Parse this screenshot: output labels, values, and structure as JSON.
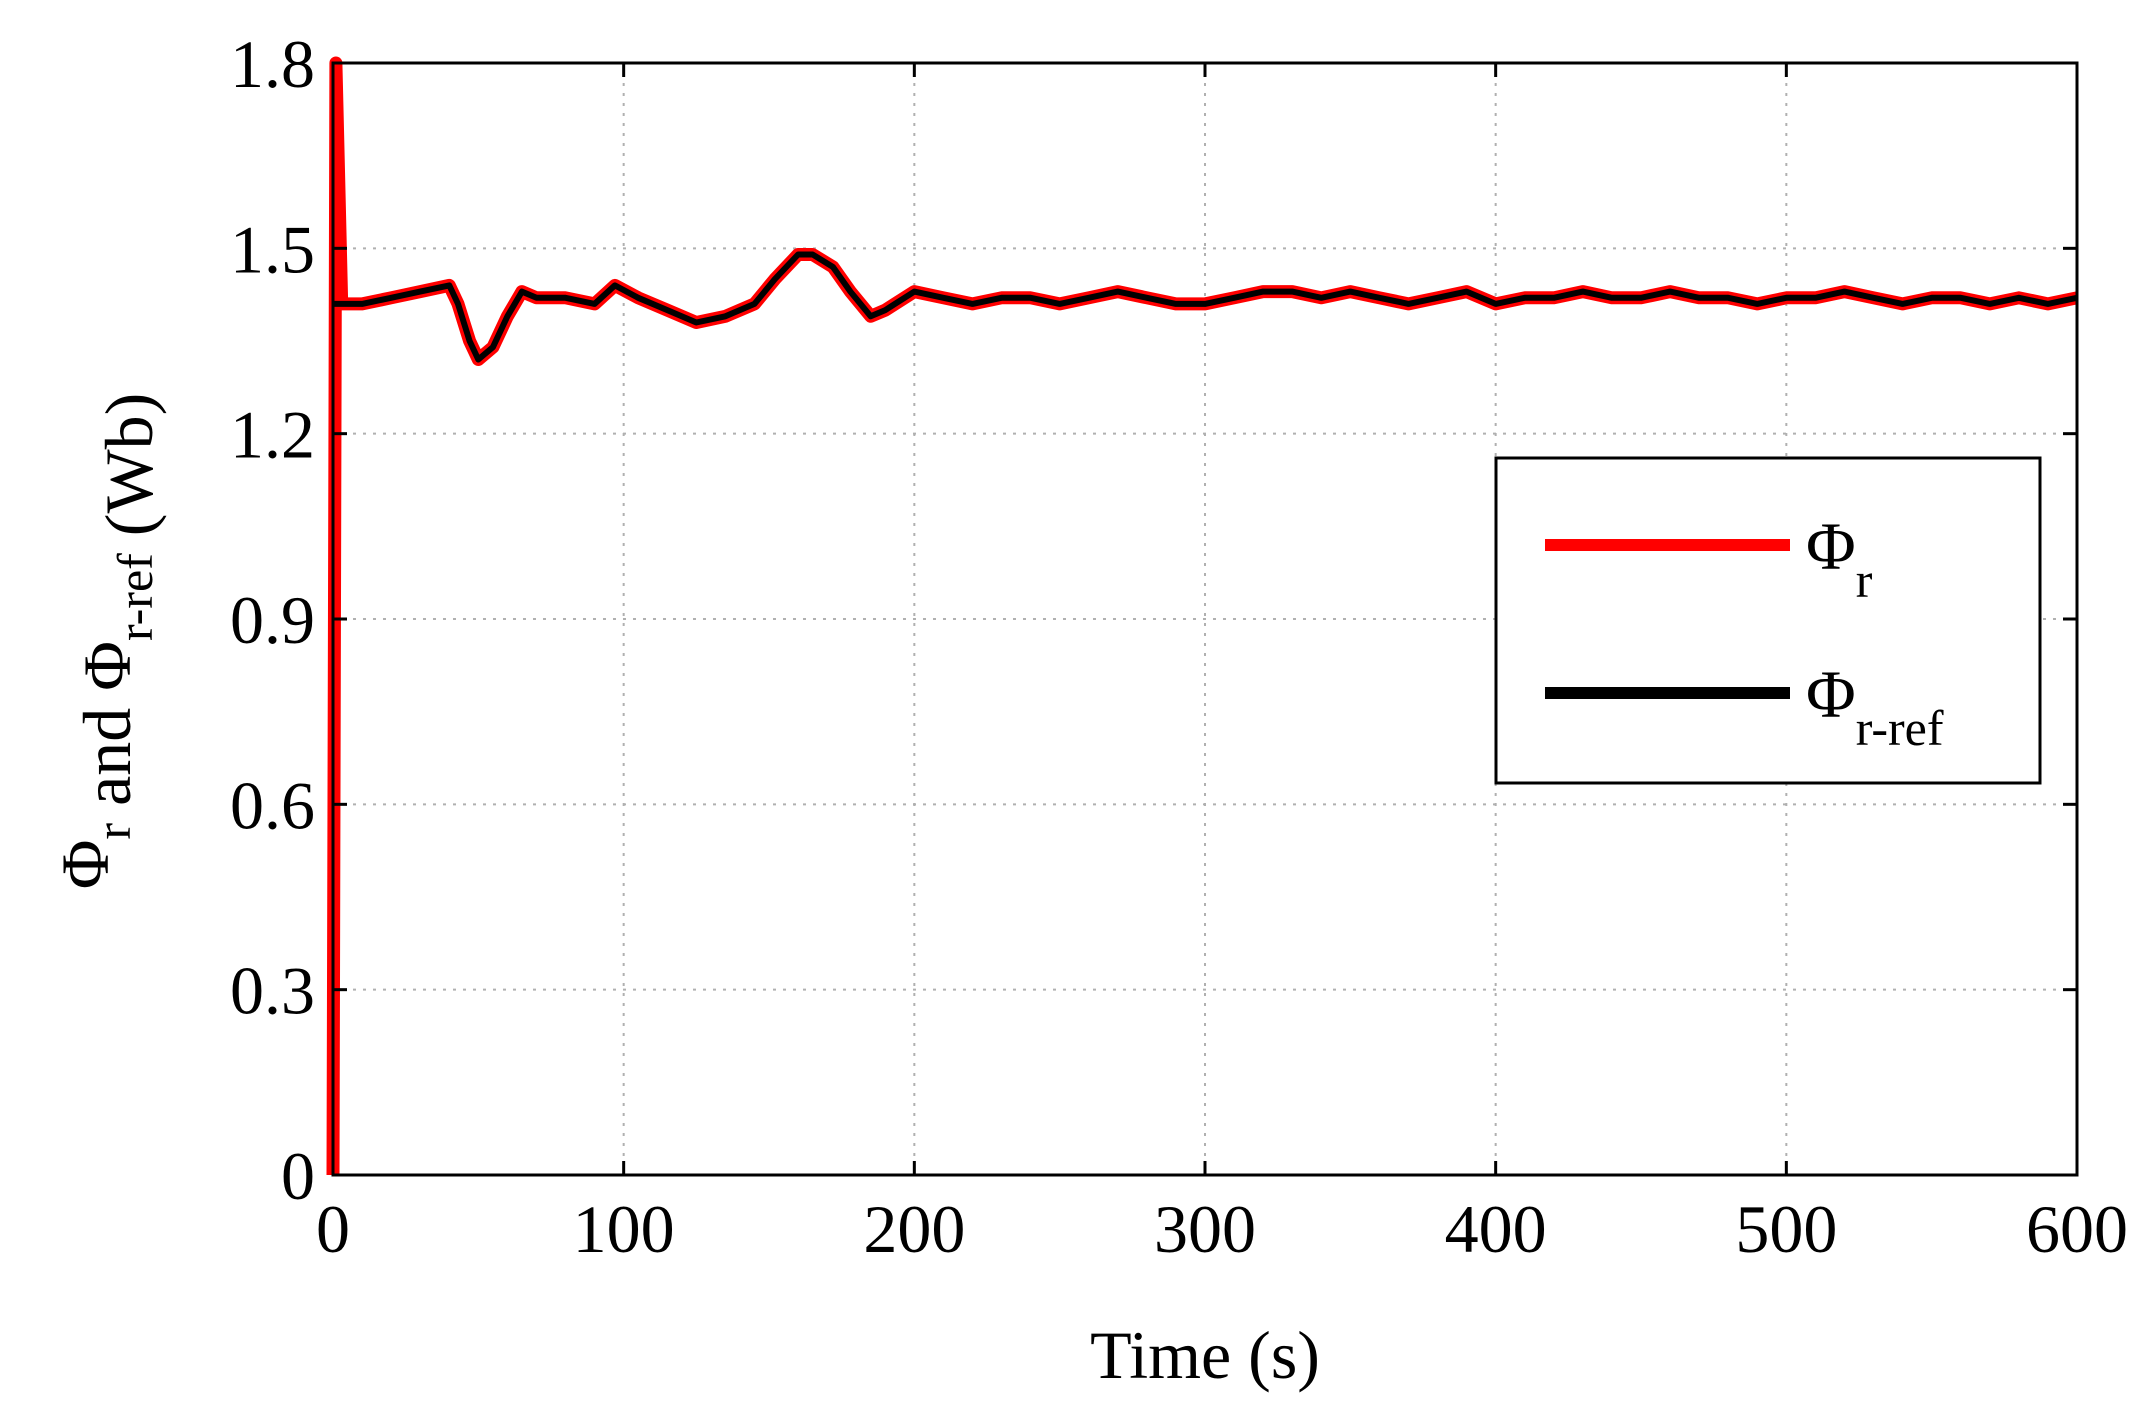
{
  "chart_data": {
    "type": "line",
    "title": "",
    "xlabel": "Time  (s)",
    "ylabel": {
      "parts": [
        {
          "text": "Φ",
          "sub": "r"
        },
        {
          "text": " and "
        },
        {
          "text": "Φ",
          "sub": "r-ref"
        },
        {
          "text": "  (Wb)"
        }
      ]
    },
    "xlim": [
      0,
      600
    ],
    "ylim": [
      0,
      1.8
    ],
    "xticks": [
      0,
      100,
      200,
      300,
      400,
      500,
      600
    ],
    "xtick_labels": [
      "0",
      "100",
      "200",
      "300",
      "400",
      "500",
      "600"
    ],
    "yticks": [
      0,
      0.3,
      0.6,
      0.9,
      1.2,
      1.5,
      1.8
    ],
    "ytick_labels": [
      "0",
      "0.3",
      "0.6",
      "0.9",
      "1.2",
      "1.5",
      "1.8"
    ],
    "grid": true,
    "legend_position": "right",
    "series": [
      {
        "name": "Φr",
        "legend_symbol": "Φ",
        "legend_sub": "r",
        "color": "#ff0000",
        "x": [
          0,
          1,
          3,
          10,
          20,
          30,
          40,
          43,
          47,
          50,
          55,
          60,
          65,
          70,
          80,
          90,
          97,
          105,
          115,
          125,
          135,
          145,
          152,
          160,
          165,
          172,
          178,
          185,
          190,
          200,
          210,
          220,
          230,
          240,
          250,
          260,
          270,
          280,
          290,
          300,
          310,
          320,
          330,
          340,
          350,
          360,
          370,
          380,
          390,
          400,
          410,
          420,
          430,
          440,
          450,
          460,
          470,
          480,
          490,
          500,
          510,
          520,
          530,
          540,
          550,
          560,
          570,
          580,
          590,
          600
        ],
        "y": [
          0,
          1.8,
          1.41,
          1.41,
          1.42,
          1.43,
          1.44,
          1.41,
          1.35,
          1.32,
          1.34,
          1.39,
          1.43,
          1.42,
          1.42,
          1.41,
          1.44,
          1.42,
          1.4,
          1.38,
          1.39,
          1.41,
          1.45,
          1.49,
          1.49,
          1.47,
          1.43,
          1.39,
          1.4,
          1.43,
          1.42,
          1.41,
          1.42,
          1.42,
          1.41,
          1.42,
          1.43,
          1.42,
          1.41,
          1.41,
          1.42,
          1.43,
          1.43,
          1.42,
          1.43,
          1.42,
          1.41,
          1.42,
          1.43,
          1.41,
          1.42,
          1.42,
          1.43,
          1.42,
          1.42,
          1.43,
          1.42,
          1.42,
          1.41,
          1.42,
          1.42,
          1.43,
          1.42,
          1.41,
          1.42,
          1.42,
          1.41,
          1.42,
          1.41,
          1.42
        ]
      },
      {
        "name": "Φr-ref",
        "legend_symbol": "Φ",
        "legend_sub": "r-ref",
        "color": "#000000",
        "x": [
          0,
          3,
          10,
          20,
          30,
          40,
          43,
          47,
          50,
          55,
          60,
          65,
          70,
          80,
          90,
          97,
          105,
          115,
          125,
          135,
          145,
          152,
          160,
          165,
          172,
          178,
          185,
          190,
          200,
          210,
          220,
          230,
          240,
          250,
          260,
          270,
          280,
          290,
          300,
          310,
          320,
          330,
          340,
          350,
          360,
          370,
          380,
          390,
          400,
          410,
          420,
          430,
          440,
          450,
          460,
          470,
          480,
          490,
          500,
          510,
          520,
          530,
          540,
          550,
          560,
          570,
          580,
          590,
          600
        ],
        "y": [
          1.41,
          1.41,
          1.41,
          1.42,
          1.43,
          1.44,
          1.41,
          1.35,
          1.32,
          1.34,
          1.39,
          1.43,
          1.42,
          1.42,
          1.41,
          1.44,
          1.42,
          1.4,
          1.38,
          1.39,
          1.41,
          1.45,
          1.49,
          1.49,
          1.47,
          1.43,
          1.39,
          1.4,
          1.43,
          1.42,
          1.41,
          1.42,
          1.42,
          1.41,
          1.42,
          1.43,
          1.42,
          1.41,
          1.41,
          1.42,
          1.43,
          1.43,
          1.42,
          1.43,
          1.42,
          1.41,
          1.42,
          1.43,
          1.41,
          1.42,
          1.42,
          1.43,
          1.42,
          1.42,
          1.43,
          1.42,
          1.42,
          1.41,
          1.42,
          1.42,
          1.43,
          1.42,
          1.41,
          1.42,
          1.42,
          1.41,
          1.42,
          1.41,
          1.42
        ]
      }
    ]
  }
}
